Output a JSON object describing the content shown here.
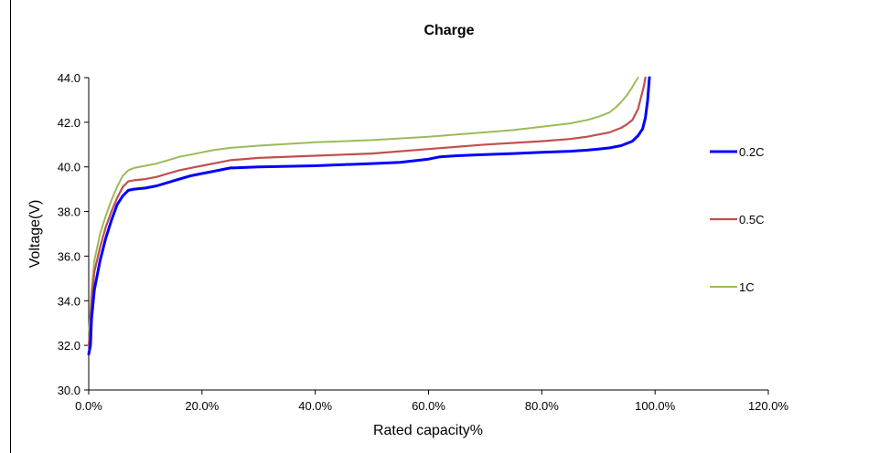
{
  "chart_data": {
    "type": "line",
    "title": "Charge",
    "xlabel": "Rated capacity%",
    "ylabel": "Voltage(V)",
    "xlim": [
      0,
      120
    ],
    "ylim": [
      30,
      44
    ],
    "x_ticks": [
      0,
      20,
      40,
      60,
      80,
      100,
      120
    ],
    "x_tick_labels": [
      "0.0%",
      "20.0%",
      "40.0%",
      "60.0%",
      "80.0%",
      "100.0%",
      "120.0%"
    ],
    "y_ticks": [
      30,
      32,
      34,
      36,
      38,
      40,
      42,
      44
    ],
    "y_tick_labels": [
      "30.0",
      "32.0",
      "34.0",
      "36.0",
      "38.0",
      "40.0",
      "42.0",
      "44.0"
    ],
    "grid": false,
    "legend_position": "right",
    "series": [
      {
        "name": "0.2C",
        "color": "#0000ff",
        "points": [
          [
            0,
            31.6
          ],
          [
            0.3,
            32.0
          ],
          [
            0.5,
            33.2
          ],
          [
            1,
            34.5
          ],
          [
            2,
            35.8
          ],
          [
            3,
            36.8
          ],
          [
            4,
            37.6
          ],
          [
            5,
            38.3
          ],
          [
            6,
            38.7
          ],
          [
            7,
            38.95
          ],
          [
            8,
            39.0
          ],
          [
            10,
            39.05
          ],
          [
            12,
            39.15
          ],
          [
            14,
            39.3
          ],
          [
            16,
            39.45
          ],
          [
            18,
            39.6
          ],
          [
            20,
            39.7
          ],
          [
            22,
            39.8
          ],
          [
            25,
            39.95
          ],
          [
            30,
            40.0
          ],
          [
            40,
            40.05
          ],
          [
            50,
            40.15
          ],
          [
            55,
            40.2
          ],
          [
            60,
            40.35
          ],
          [
            62,
            40.45
          ],
          [
            65,
            40.5
          ],
          [
            70,
            40.55
          ],
          [
            75,
            40.6
          ],
          [
            80,
            40.65
          ],
          [
            85,
            40.7
          ],
          [
            88,
            40.75
          ],
          [
            90,
            40.8
          ],
          [
            92,
            40.85
          ],
          [
            94,
            40.95
          ],
          [
            96,
            41.15
          ],
          [
            97,
            41.4
          ],
          [
            97.8,
            41.7
          ],
          [
            98.3,
            42.2
          ],
          [
            98.7,
            43.0
          ],
          [
            99,
            44.0
          ]
        ]
      },
      {
        "name": "0.5C",
        "color": "#c0504d",
        "points": [
          [
            0,
            32.0
          ],
          [
            0.3,
            33.0
          ],
          [
            0.5,
            34.0
          ],
          [
            1,
            35.3
          ],
          [
            2,
            36.4
          ],
          [
            3,
            37.3
          ],
          [
            4,
            38.0
          ],
          [
            5,
            38.6
          ],
          [
            6,
            39.1
          ],
          [
            7,
            39.35
          ],
          [
            8,
            39.4
          ],
          [
            10,
            39.45
          ],
          [
            12,
            39.55
          ],
          [
            14,
            39.7
          ],
          [
            16,
            39.85
          ],
          [
            18,
            39.95
          ],
          [
            20,
            40.05
          ],
          [
            22,
            40.15
          ],
          [
            25,
            40.3
          ],
          [
            30,
            40.4
          ],
          [
            40,
            40.5
          ],
          [
            50,
            40.6
          ],
          [
            60,
            40.8
          ],
          [
            70,
            41.0
          ],
          [
            80,
            41.15
          ],
          [
            85,
            41.25
          ],
          [
            88,
            41.35
          ],
          [
            90,
            41.45
          ],
          [
            92,
            41.55
          ],
          [
            94,
            41.75
          ],
          [
            95,
            41.9
          ],
          [
            96,
            42.1
          ],
          [
            97,
            42.6
          ],
          [
            97.5,
            43.1
          ],
          [
            98,
            43.6
          ],
          [
            98.3,
            44.0
          ]
        ]
      },
      {
        "name": "1C",
        "color": "#9bbb59",
        "points": [
          [
            0,
            32.5
          ],
          [
            0.3,
            33.5
          ],
          [
            0.5,
            34.5
          ],
          [
            1,
            35.8
          ],
          [
            2,
            37.0
          ],
          [
            3,
            37.8
          ],
          [
            4,
            38.5
          ],
          [
            5,
            39.1
          ],
          [
            6,
            39.6
          ],
          [
            7,
            39.85
          ],
          [
            8,
            39.95
          ],
          [
            10,
            40.05
          ],
          [
            12,
            40.15
          ],
          [
            14,
            40.3
          ],
          [
            16,
            40.45
          ],
          [
            18,
            40.55
          ],
          [
            20,
            40.65
          ],
          [
            22,
            40.75
          ],
          [
            25,
            40.85
          ],
          [
            30,
            40.95
          ],
          [
            40,
            41.1
          ],
          [
            50,
            41.2
          ],
          [
            60,
            41.35
          ],
          [
            70,
            41.55
          ],
          [
            75,
            41.65
          ],
          [
            80,
            41.8
          ],
          [
            85,
            41.95
          ],
          [
            88,
            42.1
          ],
          [
            90,
            42.25
          ],
          [
            92,
            42.45
          ],
          [
            93,
            42.65
          ],
          [
            94,
            42.9
          ],
          [
            95,
            43.2
          ],
          [
            95.8,
            43.5
          ],
          [
            96.5,
            43.8
          ],
          [
            97,
            44.0
          ]
        ]
      }
    ]
  }
}
